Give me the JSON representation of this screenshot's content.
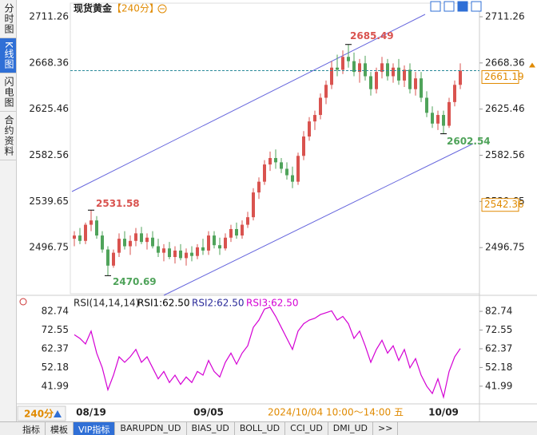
{
  "header": {
    "title": "现货黄金",
    "period": "【240分】"
  },
  "sidebar": [
    "分时图",
    "K线图",
    "闪电图",
    "合约资料"
  ],
  "tabs": [
    "指标",
    "模板",
    "VIP指标",
    "BARUPDN_UD",
    "BIAS_UD",
    "BOLL_UD",
    "CCI_UD",
    "DMI_UD",
    ">>"
  ],
  "period_selector": "240分",
  "cursor_time": "2024/10/04 10:00～14:00 五",
  "chart_data": [
    {
      "type": "candlestick",
      "up_color": "#d9534f",
      "down_color": "#4fa35a",
      "ylim": [
        2453.9,
        2720.9
      ],
      "yticks": [
        2711.26,
        2668.36,
        2625.46,
        2582.56,
        2539.65,
        2496.75
      ],
      "reference_price": 2542.36,
      "categories": [
        null,
        null,
        null,
        "08/19",
        null,
        null,
        null,
        null,
        null,
        null,
        null,
        null,
        null,
        null,
        null,
        null,
        null,
        null,
        null,
        null,
        null,
        null,
        null,
        null,
        "09/05",
        null,
        null,
        null,
        null,
        null,
        null,
        null,
        null,
        null,
        null,
        null,
        null,
        null,
        null,
        null,
        null,
        null,
        null,
        null,
        null,
        null,
        null,
        null,
        null,
        null,
        null,
        null,
        null,
        null,
        null,
        null,
        null,
        null,
        null,
        null,
        null,
        null,
        null,
        null,
        null,
        null,
        "10/09",
        null,
        null,
        null
      ],
      "candles": [
        [
          2505,
          2512,
          2498,
          2508
        ],
        [
          2508,
          2515,
          2500,
          2503
        ],
        [
          2503,
          2520,
          2500,
          2518
        ],
        [
          2518,
          2531.58,
          2512,
          2522
        ],
        [
          2522,
          2526,
          2505,
          2508
        ],
        [
          2508,
          2512,
          2492,
          2495
        ],
        [
          2495,
          2498,
          2470.69,
          2480
        ],
        [
          2480,
          2495,
          2478,
          2492
        ],
        [
          2492,
          2510,
          2488,
          2505
        ],
        [
          2505,
          2512,
          2495,
          2498
        ],
        [
          2498,
          2508,
          2490,
          2503
        ],
        [
          2503,
          2515,
          2498,
          2510
        ],
        [
          2510,
          2516,
          2500,
          2502
        ],
        [
          2502,
          2510,
          2495,
          2506
        ],
        [
          2506,
          2512,
          2496,
          2498
        ],
        [
          2498,
          2505,
          2488,
          2492
        ],
        [
          2492,
          2500,
          2484,
          2496
        ],
        [
          2496,
          2502,
          2486,
          2488
        ],
        [
          2488,
          2498,
          2482,
          2494
        ],
        [
          2494,
          2500,
          2485,
          2487
        ],
        [
          2487,
          2496,
          2480,
          2492
        ],
        [
          2492,
          2498,
          2484,
          2489
        ],
        [
          2489,
          2500,
          2486,
          2497
        ],
        [
          2497,
          2505,
          2490,
          2494
        ],
        [
          2494,
          2512,
          2490,
          2508
        ],
        [
          2508,
          2512,
          2496,
          2499
        ],
        [
          2499,
          2506,
          2490,
          2496
        ],
        [
          2496,
          2510,
          2494,
          2506
        ],
        [
          2506,
          2518,
          2502,
          2514
        ],
        [
          2514,
          2520,
          2505,
          2508
        ],
        [
          2508,
          2522,
          2505,
          2518
        ],
        [
          2518,
          2530,
          2515,
          2525
        ],
        [
          2525,
          2552,
          2522,
          2548
        ],
        [
          2548,
          2562,
          2542,
          2558
        ],
        [
          2558,
          2578,
          2555,
          2574
        ],
        [
          2574,
          2586,
          2568,
          2580
        ],
        [
          2580,
          2588,
          2570,
          2576
        ],
        [
          2576,
          2580,
          2566,
          2570
        ],
        [
          2570,
          2576,
          2560,
          2564
        ],
        [
          2564,
          2572,
          2552,
          2558
        ],
        [
          2558,
          2585,
          2555,
          2582
        ],
        [
          2582,
          2605,
          2578,
          2600
        ],
        [
          2600,
          2618,
          2596,
          2614
        ],
        [
          2614,
          2624,
          2606,
          2620
        ],
        [
          2620,
          2640,
          2616,
          2636
        ],
        [
          2636,
          2652,
          2630,
          2648
        ],
        [
          2648,
          2670,
          2644,
          2664
        ],
        [
          2664,
          2676,
          2656,
          2662
        ],
        [
          2662,
          2680,
          2658,
          2674
        ],
        [
          2674,
          2685.49,
          2664,
          2670
        ],
        [
          2670,
          2678,
          2656,
          2660
        ],
        [
          2660,
          2672,
          2650,
          2668
        ],
        [
          2668,
          2675,
          2652,
          2656
        ],
        [
          2656,
          2660,
          2638,
          2644
        ],
        [
          2644,
          2664,
          2640,
          2660
        ],
        [
          2660,
          2674,
          2654,
          2668
        ],
        [
          2668,
          2672,
          2652,
          2656
        ],
        [
          2656,
          2668,
          2650,
          2664
        ],
        [
          2664,
          2672,
          2648,
          2652
        ],
        [
          2652,
          2666,
          2646,
          2662
        ],
        [
          2662,
          2668,
          2640,
          2644
        ],
        [
          2644,
          2660,
          2638,
          2654
        ],
        [
          2654,
          2660,
          2632,
          2636
        ],
        [
          2636,
          2642,
          2618,
          2622
        ],
        [
          2622,
          2628,
          2608,
          2612
        ],
        [
          2612,
          2624,
          2606,
          2620
        ],
        [
          2620,
          2624,
          2602.54,
          2610
        ],
        [
          2610,
          2636,
          2608,
          2632
        ],
        [
          2632,
          2652,
          2628,
          2648
        ],
        [
          2648,
          2668,
          2644,
          2661.19
        ]
      ]
    },
    {
      "type": "line",
      "title": "RSI(14,14,14)",
      "legend": [
        {
          "text": "RSI1:62.50",
          "color": "#000000"
        },
        {
          "text": "RSI2:62.50",
          "color": "#2a2a9a"
        },
        {
          "text": "RSI3:62.50",
          "color": "#d400d4"
        }
      ],
      "color": "#d400d4",
      "ylim": [
        32.8,
        90.6
      ],
      "yticks": [
        82.74,
        72.55,
        62.37,
        52.18,
        41.99
      ],
      "values": [
        70,
        68,
        65,
        72,
        60,
        52,
        40,
        48,
        58,
        55,
        58,
        62,
        55,
        58,
        52,
        46,
        50,
        44,
        48,
        43,
        47,
        44,
        50,
        48,
        56,
        50,
        47,
        55,
        60,
        54,
        60,
        64,
        74,
        78,
        84,
        85,
        80,
        74,
        68,
        62,
        72,
        76,
        78,
        79,
        81,
        82,
        83,
        78,
        80,
        76,
        68,
        72,
        64,
        55,
        62,
        67,
        60,
        64,
        56,
        62,
        52,
        57,
        48,
        42,
        38,
        46,
        36,
        50,
        58,
        62.5
      ]
    }
  ]
}
